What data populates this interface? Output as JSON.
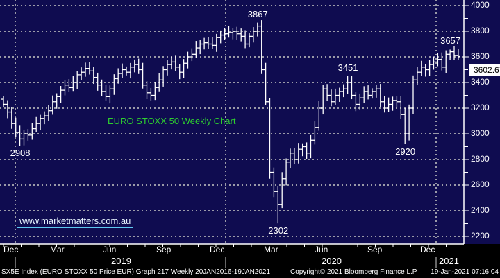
{
  "chart_data": {
    "type": "ohlc",
    "title": "EURO STOXX 50 Weekly Chart",
    "ylim": [
      2200,
      4000
    ],
    "yticks": [
      2200,
      2400,
      2600,
      2800,
      3000,
      3200,
      3400,
      3600,
      3800,
      4000
    ],
    "x_month_labels": [
      "Dec",
      "Mar",
      "Jun",
      "Sep",
      "Dec",
      "Mar",
      "Jun",
      "Sep",
      "Dec"
    ],
    "x_year_labels": [
      "2019",
      "2020",
      "2021"
    ],
    "last_price": "3602.67",
    "annotations": [
      {
        "text": "2908",
        "week": 4
      },
      {
        "text": "3867",
        "week": 62
      },
      {
        "text": "2302",
        "week": 67
      },
      {
        "text": "3451",
        "week": 84
      },
      {
        "text": "2920",
        "week": 98
      },
      {
        "text": "3657",
        "week": 109
      }
    ],
    "close": [
      3230,
      3170,
      3080,
      3010,
      2960,
      3000,
      2990,
      3040,
      3080,
      3120,
      3140,
      3180,
      3250,
      3290,
      3340,
      3380,
      3360,
      3400,
      3460,
      3480,
      3510,
      3490,
      3440,
      3380,
      3330,
      3290,
      3350,
      3430,
      3470,
      3500,
      3480,
      3520,
      3540,
      3500,
      3380,
      3320,
      3300,
      3360,
      3420,
      3500,
      3540,
      3560,
      3520,
      3480,
      3550,
      3600,
      3620,
      3670,
      3700,
      3710,
      3700,
      3690,
      3750,
      3770,
      3780,
      3790,
      3800,
      3780,
      3760,
      3700,
      3760,
      3800,
      3840,
      3500,
      3250,
      2700,
      2550,
      2450,
      2650,
      2780,
      2850,
      2800,
      2880,
      2900,
      2850,
      2950,
      3050,
      3200,
      3350,
      3300,
      3250,
      3300,
      3330,
      3350,
      3400,
      3300,
      3230,
      3280,
      3330,
      3300,
      3330,
      3350,
      3250,
      3200,
      3230,
      3260,
      3250,
      3150,
      3000,
      3200,
      3420,
      3480,
      3520,
      3500,
      3540,
      3560,
      3580,
      3520,
      3620,
      3640,
      3610,
      3602.67
    ],
    "extremes": {
      "4": 2908,
      "62": 3867,
      "67": 2302,
      "84": 3451,
      "98": 2920,
      "109": 3657
    }
  },
  "watermark": "www.marketmatters.com.au",
  "footer": {
    "left": "SX5E Index (EURO STOXX 50 Price EUR) Graph 217  Weekly 20JAN2016-19JAN2021",
    "center": "Copyright© 2021 Bloomberg Finance L.P.",
    "right": "19-Jan-2021 07:16:04"
  },
  "colors": {
    "background": "#0f0c50",
    "title": "#2ed02e",
    "bars": "#ffffff"
  }
}
